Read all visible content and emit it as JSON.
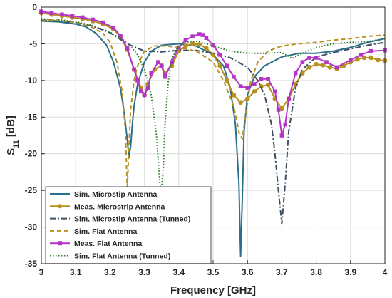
{
  "chart_data": {
    "type": "line",
    "xlabel": "Frequency [GHz]",
    "ylabel": "S",
    "ylabel_sub": "11",
    "ylabel_suffix": " [dB]",
    "xlim": [
      3,
      4
    ],
    "ylim": [
      -35,
      0
    ],
    "xticks": [
      3,
      3.1,
      3.2,
      3.3,
      3.4,
      3.5,
      3.6,
      3.7,
      3.8,
      3.9,
      4
    ],
    "xtick_labels": [
      "3",
      "3.1",
      "3.2",
      "3.3",
      "3.4",
      "3.5",
      "3.6",
      "3.7",
      "3.8",
      "3.9",
      "4"
    ],
    "yticks": [
      0,
      -5,
      -10,
      -15,
      -20,
      -25,
      -30,
      -35
    ],
    "ytick_labels": [
      "0",
      "-5",
      "-10",
      "-15",
      "-20",
      "-25",
      "-30",
      "-35"
    ],
    "grid": true,
    "legend_position": "bottom-left",
    "series": [
      {
        "name": "Sim. Microstip Antenna",
        "color": "#2a6f8c",
        "style": "solid",
        "marker": "none",
        "x": [
          3.0,
          3.05,
          3.1,
          3.13,
          3.16,
          3.19,
          3.21,
          3.23,
          3.24,
          3.25,
          3.255,
          3.26,
          3.265,
          3.27,
          3.28,
          3.3,
          3.32,
          3.35,
          3.4,
          3.45,
          3.5,
          3.53,
          3.55,
          3.565,
          3.575,
          3.58,
          3.585,
          3.59,
          3.6,
          3.62,
          3.65,
          3.7,
          3.75,
          3.8,
          3.85,
          3.9,
          3.95,
          4.0
        ],
        "y": [
          -1.9,
          -2.0,
          -2.3,
          -2.7,
          -3.6,
          -5.2,
          -7.5,
          -11.0,
          -14.0,
          -18.0,
          -20.5,
          -19.0,
          -16.0,
          -13.5,
          -10.5,
          -7.5,
          -6.0,
          -5.2,
          -5.0,
          -5.3,
          -6.5,
          -8.0,
          -11.0,
          -16.0,
          -24.0,
          -34.0,
          -26.0,
          -17.0,
          -12.0,
          -9.5,
          -8.0,
          -6.8,
          -6.3,
          -6.3,
          -6.0,
          -5.5,
          -4.8,
          -4.3
        ]
      },
      {
        "name": "Meas. Microstrip Antenna",
        "color": "#b8901e",
        "style": "solid",
        "marker": "circle",
        "x": [
          3.0,
          3.03,
          3.06,
          3.09,
          3.12,
          3.15,
          3.18,
          3.21,
          3.23,
          3.25,
          3.27,
          3.29,
          3.3,
          3.31,
          3.33,
          3.35,
          3.36,
          3.38,
          3.4,
          3.42,
          3.44,
          3.46,
          3.48,
          3.5,
          3.52,
          3.54,
          3.56,
          3.58,
          3.6,
          3.62,
          3.64,
          3.66,
          3.68,
          3.7,
          3.72,
          3.74,
          3.76,
          3.78,
          3.8,
          3.82,
          3.84,
          3.86,
          3.88,
          3.9,
          3.92,
          3.94,
          3.96,
          3.98,
          4.0
        ],
        "y": [
          -0.8,
          -1.0,
          -1.2,
          -1.4,
          -1.6,
          -1.9,
          -2.3,
          -3.0,
          -4.0,
          -5.8,
          -8.5,
          -11.0,
          -12.0,
          -10.5,
          -8.5,
          -8.0,
          -9.0,
          -8.0,
          -6.0,
          -5.3,
          -5.0,
          -5.1,
          -5.6,
          -6.5,
          -8.0,
          -10.0,
          -12.0,
          -13.0,
          -12.5,
          -11.5,
          -10.8,
          -10.6,
          -12.5,
          -13.8,
          -12.5,
          -10.5,
          -9.0,
          -8.2,
          -7.8,
          -7.9,
          -8.2,
          -8.4,
          -8.0,
          -7.5,
          -7.1,
          -6.9,
          -6.9,
          -7.2,
          -7.3
        ]
      },
      {
        "name": "Sim. Microstip Antenna (Tunned)",
        "color": "#3e4f63",
        "style": "dashdot",
        "marker": "none",
        "x": [
          3.0,
          3.05,
          3.1,
          3.15,
          3.2,
          3.25,
          3.3,
          3.35,
          3.4,
          3.45,
          3.5,
          3.55,
          3.6,
          3.63,
          3.65,
          3.67,
          3.68,
          3.69,
          3.7,
          3.71,
          3.72,
          3.74,
          3.76,
          3.8,
          3.85,
          3.9,
          3.95,
          4.0
        ],
        "y": [
          -1.8,
          -1.9,
          -2.1,
          -2.6,
          -3.5,
          -5.0,
          -6.0,
          -6.1,
          -5.9,
          -5.9,
          -6.3,
          -6.9,
          -8.2,
          -10.0,
          -12.0,
          -16.0,
          -20.0,
          -25.0,
          -29.5,
          -24.0,
          -17.0,
          -11.0,
          -8.5,
          -6.8,
          -6.2,
          -5.7,
          -5.2,
          -4.8
        ]
      },
      {
        "name": "Sim. Flat Antenna",
        "color": "#b8901e",
        "style": "dashed",
        "marker": "none",
        "x": [
          3.0,
          3.05,
          3.1,
          3.15,
          3.18,
          3.2,
          3.22,
          3.235,
          3.245,
          3.25,
          3.255,
          3.26,
          3.27,
          3.28,
          3.3,
          3.33,
          3.36,
          3.4,
          3.45,
          3.5,
          3.53,
          3.56,
          3.575,
          3.585,
          3.595,
          3.61,
          3.63,
          3.66,
          3.7,
          3.75,
          3.8,
          3.85,
          3.9,
          3.95,
          4.0
        ],
        "y": [
          -1.7,
          -1.8,
          -2.1,
          -2.8,
          -3.6,
          -4.8,
          -7.5,
          -11.5,
          -17.0,
          -25.0,
          -19.0,
          -14.0,
          -10.0,
          -8.0,
          -6.0,
          -5.3,
          -5.3,
          -5.5,
          -6.0,
          -7.5,
          -10.0,
          -13.5,
          -17.0,
          -18.0,
          -14.5,
          -10.0,
          -7.5,
          -6.0,
          -5.3,
          -5.0,
          -4.8,
          -4.5,
          -4.3,
          -4.0,
          -3.8
        ]
      },
      {
        "name": "Meas. Flat Antenna",
        "color": "#b334c6",
        "style": "solid",
        "marker": "square",
        "x": [
          3.0,
          3.03,
          3.06,
          3.09,
          3.12,
          3.15,
          3.18,
          3.21,
          3.23,
          3.25,
          3.27,
          3.28,
          3.29,
          3.3,
          3.31,
          3.32,
          3.34,
          3.35,
          3.36,
          3.38,
          3.4,
          3.42,
          3.44,
          3.46,
          3.47,
          3.48,
          3.5,
          3.52,
          3.54,
          3.56,
          3.58,
          3.6,
          3.62,
          3.64,
          3.66,
          3.68,
          3.69,
          3.7,
          3.71,
          3.72,
          3.74,
          3.76,
          3.78,
          3.8,
          3.83,
          3.86,
          3.9,
          3.93,
          3.96,
          4.0
        ],
        "y": [
          -0.6,
          -0.8,
          -1.0,
          -1.2,
          -1.4,
          -1.7,
          -2.1,
          -2.8,
          -3.9,
          -5.6,
          -8.5,
          -10.0,
          -11.5,
          -12.0,
          -11.0,
          -9.0,
          -7.5,
          -8.0,
          -9.5,
          -7.5,
          -5.5,
          -4.5,
          -4.0,
          -3.7,
          -3.8,
          -4.2,
          -5.2,
          -6.5,
          -8.0,
          -9.5,
          -10.8,
          -11.0,
          -10.5,
          -9.8,
          -9.8,
          -11.5,
          -14.0,
          -17.5,
          -16.0,
          -12.5,
          -9.0,
          -7.5,
          -6.9,
          -6.9,
          -7.5,
          -8.2,
          -7.2,
          -6.5,
          -6.0,
          -5.9
        ]
      },
      {
        "name": "Sim. Flat Antenna (Tunned)",
        "color": "#2c7d2c",
        "style": "dotted",
        "marker": "none",
        "x": [
          3.0,
          3.05,
          3.1,
          3.15,
          3.2,
          3.25,
          3.28,
          3.3,
          3.32,
          3.335,
          3.345,
          3.35,
          3.355,
          3.36,
          3.37,
          3.38,
          3.4,
          3.43,
          3.46,
          3.5,
          3.55,
          3.6,
          3.65,
          3.7,
          3.73,
          3.75,
          3.8,
          3.85,
          3.9,
          3.95,
          4.0
        ],
        "y": [
          -1.6,
          -1.7,
          -2.0,
          -2.5,
          -3.4,
          -4.8,
          -6.5,
          -8.5,
          -12.0,
          -17.5,
          -24.0,
          -25.0,
          -22.0,
          -16.0,
          -10.0,
          -7.0,
          -5.2,
          -4.7,
          -4.7,
          -5.3,
          -6.0,
          -6.3,
          -6.3,
          -6.2,
          -7.0,
          -6.5,
          -5.5,
          -5.0,
          -4.8,
          -4.7,
          -4.3
        ]
      }
    ]
  }
}
